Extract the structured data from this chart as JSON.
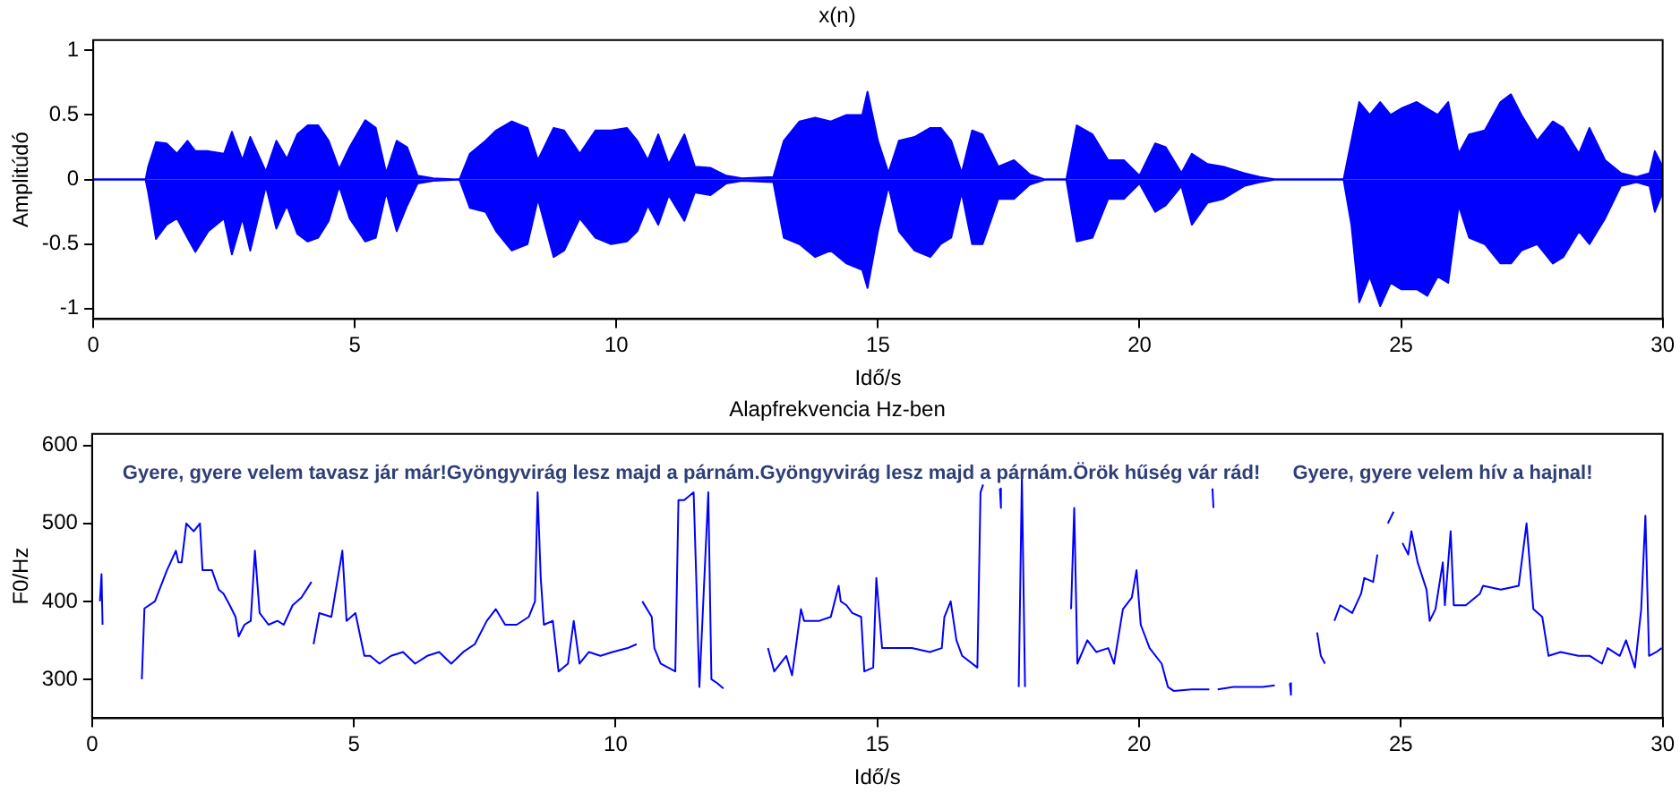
{
  "chart_data": [
    {
      "type": "area",
      "title": "x(n)",
      "xlabel": "Idő/s",
      "ylabel": "Amplitúdó",
      "xlim": [
        0,
        30
      ],
      "xticks": [
        0,
        5,
        10,
        15,
        20,
        25,
        30
      ],
      "ylim": [
        -1.08,
        1.08
      ],
      "yticks": [
        -1,
        -0.5,
        0,
        0.5,
        1
      ],
      "legend": false,
      "series": [
        {
          "color": "#0000ff",
          "x": [
            0,
            1.0,
            1.05,
            1.2,
            1.4,
            1.6,
            1.8,
            1.95,
            2.2,
            2.5,
            2.65,
            2.85,
            3.0,
            3.3,
            3.5,
            3.7,
            3.9,
            4.1,
            4.3,
            4.5,
            4.7,
            4.9,
            5.2,
            5.4,
            5.6,
            5.8,
            6.0,
            6.2,
            6.5,
            7.0,
            7.2,
            7.5,
            7.7,
            8.0,
            8.3,
            8.5,
            8.8,
            9.0,
            9.3,
            9.6,
            9.9,
            10.2,
            10.4,
            10.6,
            10.8,
            11.0,
            11.3,
            11.5,
            11.8,
            12.1,
            12.4,
            13.0,
            13.2,
            13.5,
            13.8,
            14.1,
            14.4,
            14.7,
            14.8,
            15.0,
            15.2,
            15.4,
            15.7,
            16.0,
            16.2,
            16.4,
            16.6,
            16.8,
            17.0,
            17.3,
            17.6,
            17.9,
            18.2,
            18.6,
            18.8,
            19.1,
            19.4,
            19.7,
            20.0,
            20.3,
            20.5,
            20.8,
            21.0,
            21.3,
            21.6,
            22.0,
            22.3,
            22.6,
            23.9,
            24.05,
            24.2,
            24.4,
            24.6,
            24.8,
            25.0,
            25.3,
            25.5,
            25.7,
            25.9,
            26.1,
            26.3,
            26.6,
            26.9,
            27.1,
            27.3,
            27.6,
            27.9,
            28.1,
            28.4,
            28.6,
            28.9,
            29.2,
            29.5,
            29.75,
            29.85,
            30.0
          ],
          "values": [
            0,
            0,
            0.1,
            0.29,
            0.28,
            0.2,
            0.3,
            0.22,
            0.22,
            0.2,
            0.37,
            0.15,
            0.33,
            0.06,
            0.3,
            0.16,
            0.35,
            0.42,
            0.42,
            0.3,
            0.08,
            0.25,
            0.46,
            0.4,
            0.05,
            0.3,
            0.25,
            0.03,
            0.01,
            0,
            0.2,
            0.3,
            0.38,
            0.45,
            0.4,
            0.15,
            0.4,
            0.38,
            0.2,
            0.38,
            0.38,
            0.4,
            0.3,
            0.15,
            0.35,
            0.12,
            0.35,
            0.1,
            0.09,
            0.03,
            0.01,
            0.02,
            0.3,
            0.45,
            0.48,
            0.45,
            0.5,
            0.5,
            0.68,
            0.3,
            0.05,
            0.3,
            0.33,
            0.4,
            0.4,
            0.3,
            0.05,
            0.38,
            0.35,
            0.1,
            0.15,
            0.04,
            0,
            0,
            0.42,
            0.35,
            0.15,
            0.15,
            0.03,
            0.28,
            0.25,
            0.05,
            0.2,
            0.12,
            0.1,
            0.05,
            0.02,
            0,
            0,
            0.3,
            0.6,
            0.5,
            0.6,
            0.5,
            0.55,
            0.6,
            0.55,
            0.5,
            0.6,
            0.2,
            0.35,
            0.38,
            0.6,
            0.66,
            0.5,
            0.3,
            0.45,
            0.4,
            0.2,
            0.4,
            0.15,
            0.05,
            0.02,
            0.05,
            0.22,
            0.1
          ]
        },
        {
          "color": "#0000ff",
          "x": [
            0,
            1.0,
            1.05,
            1.2,
            1.4,
            1.6,
            1.8,
            1.95,
            2.2,
            2.5,
            2.65,
            2.85,
            3.0,
            3.3,
            3.5,
            3.7,
            3.9,
            4.1,
            4.3,
            4.5,
            4.7,
            4.9,
            5.2,
            5.4,
            5.6,
            5.8,
            6.0,
            6.2,
            6.5,
            7.0,
            7.2,
            7.5,
            7.7,
            8.0,
            8.3,
            8.5,
            8.8,
            9.0,
            9.3,
            9.6,
            9.9,
            10.2,
            10.4,
            10.6,
            10.8,
            11.0,
            11.3,
            11.5,
            11.8,
            12.1,
            12.4,
            13.0,
            13.2,
            13.5,
            13.8,
            14.1,
            14.4,
            14.7,
            14.8,
            15.0,
            15.2,
            15.4,
            15.7,
            16.0,
            16.2,
            16.4,
            16.6,
            16.8,
            17.0,
            17.3,
            17.6,
            17.9,
            18.2,
            18.6,
            18.8,
            19.1,
            19.4,
            19.7,
            20.0,
            20.3,
            20.5,
            20.8,
            21.0,
            21.3,
            21.6,
            22.0,
            22.3,
            22.6,
            23.9,
            24.05,
            24.2,
            24.4,
            24.6,
            24.8,
            25.0,
            25.3,
            25.5,
            25.7,
            25.9,
            26.1,
            26.3,
            26.6,
            26.9,
            27.1,
            27.3,
            27.6,
            27.9,
            28.1,
            28.4,
            28.6,
            28.9,
            29.2,
            29.5,
            29.75,
            29.85,
            30.0
          ],
          "values": [
            0,
            0,
            -0.1,
            -0.46,
            -0.35,
            -0.3,
            -0.45,
            -0.56,
            -0.4,
            -0.3,
            -0.58,
            -0.3,
            -0.55,
            -0.05,
            -0.38,
            -0.2,
            -0.42,
            -0.48,
            -0.45,
            -0.32,
            -0.05,
            -0.3,
            -0.48,
            -0.45,
            -0.1,
            -0.4,
            -0.2,
            -0.03,
            -0.01,
            0,
            -0.22,
            -0.25,
            -0.4,
            -0.55,
            -0.5,
            -0.15,
            -0.6,
            -0.55,
            -0.3,
            -0.45,
            -0.5,
            -0.48,
            -0.4,
            -0.2,
            -0.35,
            -0.12,
            -0.32,
            -0.1,
            -0.12,
            -0.03,
            -0.01,
            -0.02,
            -0.45,
            -0.5,
            -0.6,
            -0.55,
            -0.65,
            -0.7,
            -0.84,
            -0.4,
            -0.05,
            -0.4,
            -0.55,
            -0.6,
            -0.5,
            -0.45,
            -0.1,
            -0.5,
            -0.5,
            -0.15,
            -0.15,
            -0.04,
            0,
            0,
            -0.48,
            -0.45,
            -0.15,
            -0.15,
            -0.03,
            -0.25,
            -0.2,
            -0.05,
            -0.35,
            -0.18,
            -0.15,
            -0.05,
            -0.02,
            0,
            0,
            -0.35,
            -0.95,
            -0.75,
            -0.98,
            -0.8,
            -0.85,
            -0.85,
            -0.9,
            -0.75,
            -0.8,
            -0.2,
            -0.45,
            -0.5,
            -0.65,
            -0.65,
            -0.55,
            -0.5,
            -0.65,
            -0.6,
            -0.4,
            -0.5,
            -0.3,
            -0.05,
            -0.02,
            -0.05,
            -0.25,
            -0.1
          ]
        }
      ]
    },
    {
      "type": "line",
      "title": "Alapfrekvencia Hz-ben",
      "xlabel": "Idő/s",
      "ylabel": "F0/Hz",
      "xlim": [
        0,
        30
      ],
      "xticks": [
        0,
        5,
        10,
        15,
        20,
        25,
        30
      ],
      "ylim": [
        250,
        615
      ],
      "yticks": [
        300,
        400,
        500,
        600
      ],
      "legend": false,
      "annotations": [
        "Gyere, gyere velem tavasz jár már!Gyöngyvirág lesz majd a párnám.Gyöngyvirág lesz majd a párnám.Örök hűség vár rád!",
        "Gyere, gyere velem hív a hajnal!"
      ],
      "series": [
        {
          "color": "#0000ff",
          "x": [
            0.15,
            0.18,
            0.2,
            0.5,
            0.95,
            1.0,
            1.2,
            1.43,
            1.6,
            1.65,
            1.71,
            1.8,
            1.94,
            2.06,
            2.11,
            2.29,
            2.42,
            2.51,
            2.63,
            2.74,
            2.8,
            2.91,
            3.03,
            3.11,
            3.2,
            3.37,
            3.54,
            3.66,
            3.83,
            4.0,
            4.19,
            4.21,
            4.23,
            4.34,
            4.57,
            4.78,
            4.86,
            5.03,
            5.2,
            5.31,
            5.49,
            5.71,
            5.94,
            6.17,
            6.4,
            6.63,
            6.86,
            7.09,
            7.31,
            7.54,
            7.71,
            7.89,
            8.11,
            8.34,
            8.46,
            8.51,
            8.57,
            8.63,
            8.8,
            8.91,
            9.09,
            9.2,
            9.31,
            9.49,
            9.71,
            9.94,
            10.23,
            10.4,
            10.45,
            10.51,
            10.69,
            10.74,
            10.86,
            11.14,
            11.2,
            11.31,
            11.49,
            11.54,
            11.6,
            11.77,
            11.83,
            11.94,
            12.06,
            12.5,
            12.91,
            13.03,
            13.26,
            13.37,
            13.54,
            13.6,
            13.89,
            14.11,
            14.26,
            14.3,
            14.41,
            14.52,
            14.69,
            14.75,
            14.92,
            14.98,
            15.09,
            15.32,
            15.66,
            16.0,
            16.23,
            16.28,
            16.4,
            16.51,
            16.62,
            16.91,
            16.97,
            17.02,
            17.2,
            17.34,
            17.36,
            17.5,
            17.7,
            17.76,
            17.82,
            18.3,
            18.7,
            18.76,
            18.82,
            19.01,
            19.18,
            19.41,
            19.52,
            19.69,
            19.86,
            19.95,
            20.03,
            20.2,
            20.43,
            20.55,
            20.66,
            21.0,
            21.34,
            21.37,
            21.4,
            21.42,
            21.45,
            21.5,
            21.8,
            22.14,
            22.36,
            22.59,
            22.7,
            22.88,
            22.9,
            23.2,
            23.4,
            23.47,
            23.55,
            23.65,
            23.73,
            23.84,
            24.07,
            24.24,
            24.3,
            24.47,
            24.55,
            24.65,
            24.75,
            24.86,
            24.95,
            25.03,
            25.14,
            25.2,
            25.32,
            25.49,
            25.55,
            25.66,
            25.8,
            25.84,
            25.95,
            26.01,
            26.24,
            26.51,
            26.57,
            26.91,
            27.25,
            27.4,
            27.53,
            27.7,
            27.82,
            28.05,
            28.39,
            28.61,
            28.84,
            28.95,
            29.18,
            29.3,
            29.47,
            29.59,
            29.67,
            29.74,
            29.88,
            29.98
          ],
          "values": [
            400,
            435,
            370,
            null,
            300,
            391,
            400,
            440,
            465,
            450,
            450,
            500,
            490,
            500,
            440,
            440,
            415,
            410,
            395,
            380,
            355,
            370,
            375,
            465,
            385,
            370,
            375,
            370,
            395,
            405,
            425,
            null,
            345,
            385,
            380,
            465,
            375,
            385,
            330,
            330,
            320,
            330,
            335,
            320,
            330,
            335,
            320,
            335,
            345,
            375,
            390,
            370,
            370,
            380,
            400,
            540,
            430,
            370,
            375,
            310,
            320,
            375,
            320,
            335,
            330,
            335,
            340,
            345,
            null,
            400,
            380,
            340,
            320,
            310,
            530,
            530,
            540,
            430,
            290,
            540,
            300,
            295,
            288,
            null,
            340,
            310,
            330,
            305,
            390,
            375,
            375,
            380,
            420,
            400,
            395,
            385,
            380,
            310,
            315,
            430,
            340,
            340,
            340,
            335,
            340,
            380,
            400,
            350,
            330,
            315,
            540,
            550,
            null,
            545,
            520,
            null,
            290,
            560,
            290,
            null,
            390,
            520,
            320,
            350,
            335,
            340,
            320,
            390,
            405,
            440,
            370,
            340,
            320,
            290,
            285,
            287,
            287,
            null,
            545,
            520,
            null,
            287,
            290,
            290,
            290,
            292,
            null,
            295,
            280,
            null,
            360,
            330,
            320,
            null,
            375,
            395,
            385,
            410,
            430,
            425,
            460,
            null,
            500,
            515,
            null,
            475,
            460,
            490,
            450,
            415,
            375,
            390,
            450,
            395,
            490,
            395,
            395,
            410,
            420,
            415,
            420,
            500,
            390,
            380,
            330,
            335,
            330,
            330,
            320,
            340,
            330,
            350,
            315,
            390,
            510,
            330,
            335,
            340
          ]
        }
      ]
    }
  ]
}
